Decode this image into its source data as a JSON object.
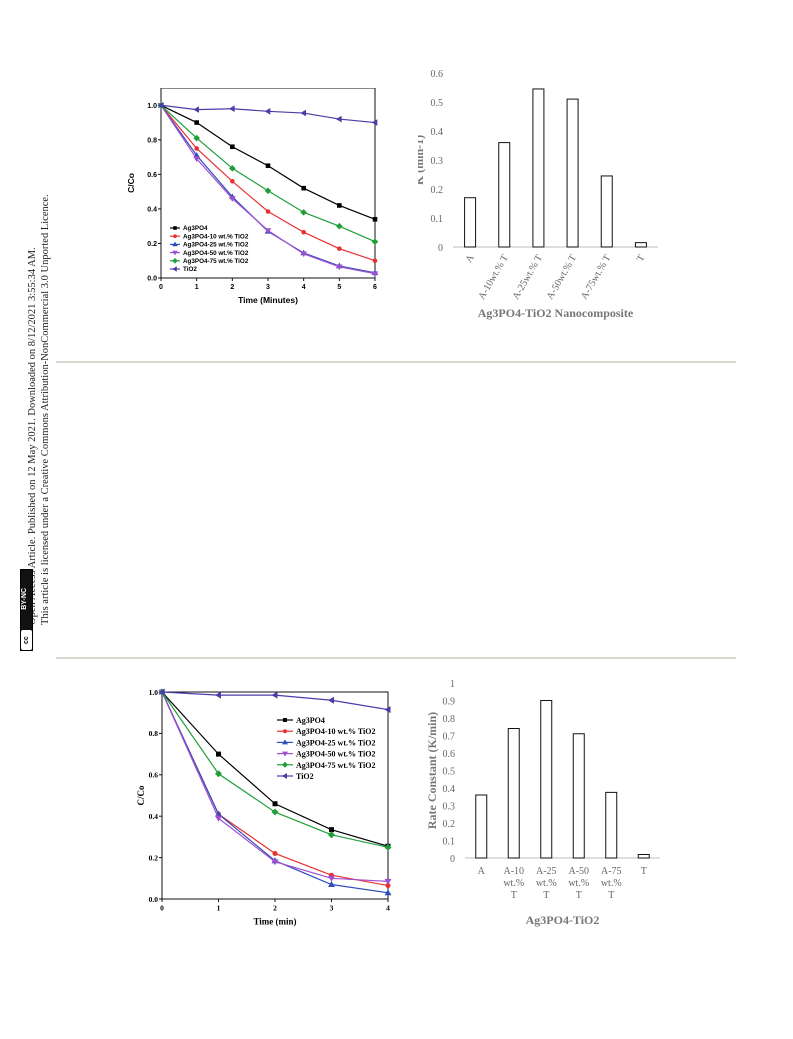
{
  "sidebar": {
    "line1": "Open Access Article. Published on 12 May 2021. Downloaded on 8/12/2021 3:55:34 AM.",
    "line2": "This article is licensed under a Creative Commons Attribution-NonCommercial 3.0 Unported Licence.",
    "badge_cc": "cc",
    "badge_text": "BY-NC"
  },
  "chart_data": [
    {
      "type": "line",
      "xlabel": "Time (Minutes)",
      "ylabel": "C/Co",
      "x": [
        0,
        1,
        2,
        3,
        4,
        5,
        6
      ],
      "xlim": [
        0,
        6
      ],
      "ylim": [
        0,
        1.1
      ],
      "yticks": [
        0.0,
        0.2,
        0.4,
        0.6,
        0.8,
        1.0
      ],
      "legend_position": "bottom-left",
      "series": [
        {
          "name": "Ag3PO4",
          "color": "#000000",
          "marker": "square",
          "values": [
            1.0,
            0.9,
            0.76,
            0.65,
            0.52,
            0.42,
            0.34
          ]
        },
        {
          "name": "Ag3PO4-10 wt.% TiO2",
          "color": "#e8302f",
          "marker": "circle",
          "values": [
            1.0,
            0.75,
            0.56,
            0.385,
            0.265,
            0.17,
            0.1
          ]
        },
        {
          "name": "Ag3PO4-25 wt.% TiO2",
          "color": "#2e4fb8",
          "marker": "triangle-up",
          "values": [
            1.0,
            0.71,
            0.47,
            0.27,
            0.145,
            0.07,
            0.03
          ]
        },
        {
          "name": "Ag3PO4-50 wt.% TiO2",
          "color": "#a14fd0",
          "marker": "triangle-down",
          "values": [
            1.0,
            0.69,
            0.46,
            0.275,
            0.14,
            0.065,
            0.025
          ]
        },
        {
          "name": "Ag3PO4-75 wt.% TiO2",
          "color": "#1f9e3a",
          "marker": "diamond",
          "values": [
            1.0,
            0.81,
            0.635,
            0.505,
            0.38,
            0.3,
            0.21
          ]
        },
        {
          "name": "TiO2",
          "color": "#4a3ca8",
          "marker": "triangle-left",
          "values": [
            1.0,
            0.975,
            0.98,
            0.965,
            0.955,
            0.92,
            0.9
          ]
        }
      ]
    },
    {
      "type": "bar",
      "title": "",
      "xlabel": "Ag3PO4-TiO2 Nanocomposite",
      "ylabel": "K (min-1)",
      "categories": [
        "A",
        "A-10wt.% T",
        "A-25wt.% T",
        "A-50wt.% T",
        "A-75wt.% T",
        "T"
      ],
      "values": [
        0.17,
        0.36,
        0.545,
        0.51,
        0.245,
        0.015
      ],
      "ylim": [
        0,
        0.6
      ],
      "yticks": [
        0,
        0.1,
        0.2,
        0.3,
        0.4,
        0.5,
        0.6
      ]
    },
    {
      "type": "line",
      "xlabel": "Time (min)",
      "ylabel": "C/Co",
      "x": [
        0,
        1,
        2,
        3,
        4
      ],
      "xlim": [
        0,
        4
      ],
      "ylim": [
        0,
        1.0
      ],
      "yticks": [
        0.0,
        0.2,
        0.4,
        0.6,
        0.8,
        1.0
      ],
      "legend_position": "top-right",
      "series": [
        {
          "name": "Ag3PO4",
          "color": "#000000",
          "marker": "square",
          "values": [
            1.0,
            0.7,
            0.46,
            0.335,
            0.255
          ]
        },
        {
          "name": "Ag3PO4-10 wt.% TiO2",
          "color": "#e8302f",
          "marker": "circle",
          "values": [
            1.0,
            0.41,
            0.22,
            0.115,
            0.065
          ]
        },
        {
          "name": "Ag3PO4-25 wt.% TiO2",
          "color": "#2e4fb8",
          "marker": "triangle-up",
          "values": [
            1.0,
            0.41,
            0.185,
            0.07,
            0.03
          ]
        },
        {
          "name": "Ag3PO4-50 wt.% TiO2",
          "color": "#a14fd0",
          "marker": "triangle-down",
          "values": [
            1.0,
            0.39,
            0.18,
            0.1,
            0.085
          ]
        },
        {
          "name": "Ag3PO4-75 wt.% TiO2",
          "color": "#1f9e3a",
          "marker": "diamond",
          "values": [
            1.0,
            0.605,
            0.42,
            0.31,
            0.25
          ]
        },
        {
          "name": "TiO2",
          "color": "#4a3ca8",
          "marker": "triangle-left",
          "values": [
            1.0,
            0.985,
            0.985,
            0.96,
            0.915
          ]
        }
      ]
    },
    {
      "type": "bar",
      "title": "",
      "xlabel": "Ag3PO4-TiO2",
      "ylabel": "Rate Constant (K/min)",
      "categories": [
        "A",
        "A-10 wt.% T",
        "A-25 wt.% T",
        "A-50 wt.% T",
        "A-75 wt.% T",
        "T"
      ],
      "category_lines": [
        [
          "A"
        ],
        [
          "A-10",
          "wt.%",
          "T"
        ],
        [
          "A-25",
          "wt.%",
          "T"
        ],
        [
          "A-50",
          "wt.%",
          "T"
        ],
        [
          "A-75",
          "wt.%",
          "T"
        ],
        [
          "T"
        ]
      ],
      "values": [
        0.36,
        0.74,
        0.9,
        0.71,
        0.375,
        0.02
      ],
      "ylim": [
        0,
        1
      ],
      "yticks": [
        0,
        0.1,
        0.2,
        0.3,
        0.4,
        0.5,
        0.6,
        0.7,
        0.8,
        0.9,
        1
      ]
    }
  ]
}
